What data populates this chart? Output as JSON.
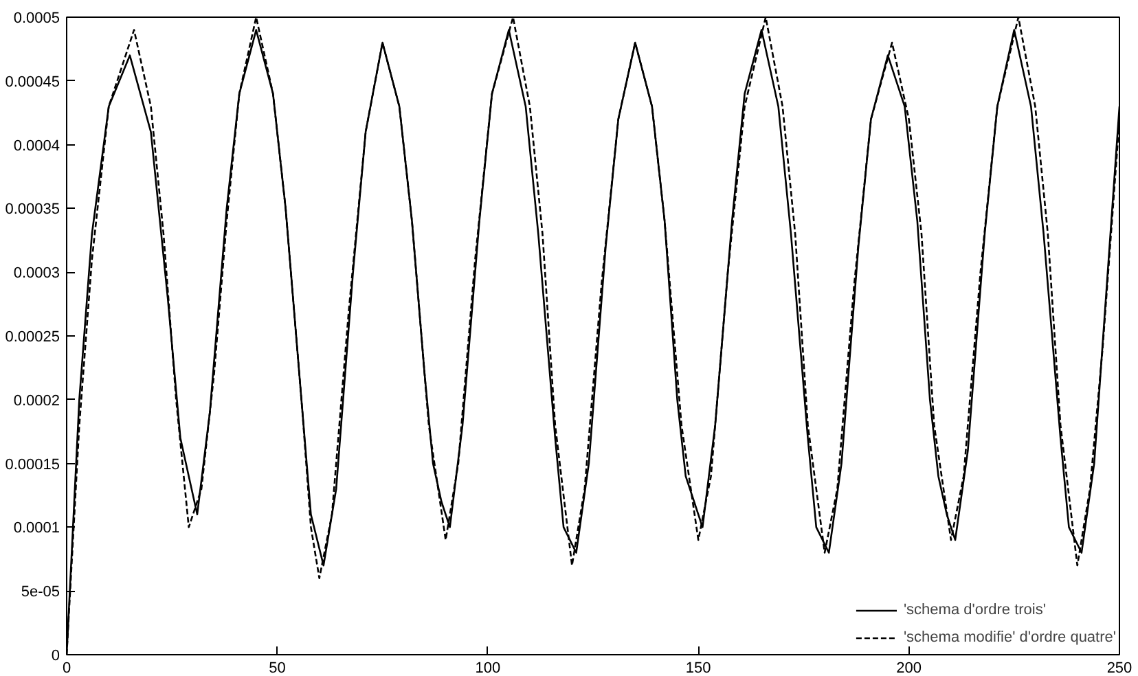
{
  "chart_data": {
    "type": "line",
    "xlim": [
      0,
      250
    ],
    "ylim": [
      0,
      0.0005
    ],
    "xticks": [
      0,
      50,
      100,
      150,
      200,
      250
    ],
    "yticks": [
      0,
      {
        "value": 5e-05,
        "label": "5e-05"
      },
      0.0001,
      0.00015,
      0.0002,
      0.00025,
      0.0003,
      0.00035,
      0.0004,
      0.00045,
      0.0005
    ],
    "grid": false,
    "legend": "bottom right",
    "marker": "none",
    "series": [
      {
        "name": "'schema d'ordre trois'",
        "color": "#000000",
        "line_style": "solid",
        "x": [
          0,
          3,
          6,
          10,
          15,
          20,
          24,
          27,
          29,
          31,
          34,
          38,
          41,
          45,
          49,
          52,
          56,
          58,
          61,
          64,
          68,
          71,
          75,
          79,
          82,
          85,
          87,
          89,
          91,
          94,
          98,
          101,
          105,
          109,
          112,
          116,
          118,
          121,
          124,
          128,
          131,
          135,
          139,
          142,
          145,
          147,
          149,
          151,
          154,
          158,
          161,
          165,
          169,
          172,
          176,
          178,
          181,
          184,
          188,
          191,
          195,
          199,
          202,
          205,
          207,
          209,
          211,
          214,
          218,
          221,
          225,
          229,
          232,
          236,
          238,
          241,
          244,
          247,
          250
        ],
        "values": [
          0,
          0.0002,
          0.00033,
          0.00043,
          0.00047,
          0.00041,
          0.00028,
          0.00017,
          0.00014,
          0.00011,
          0.00019,
          0.00035,
          0.00044,
          0.00049,
          0.00044,
          0.00035,
          0.00019,
          0.00011,
          7e-05,
          0.00013,
          0.0003,
          0.00041,
          0.00048,
          0.00043,
          0.00034,
          0.00022,
          0.00015,
          0.00012,
          0.0001,
          0.00018,
          0.00034,
          0.00044,
          0.00049,
          0.00043,
          0.00033,
          0.00017,
          0.0001,
          8e-05,
          0.00015,
          0.00032,
          0.00042,
          0.00048,
          0.00043,
          0.00034,
          0.0002,
          0.00014,
          0.00012,
          0.0001,
          0.00018,
          0.00034,
          0.00044,
          0.00049,
          0.00043,
          0.00033,
          0.00017,
          0.0001,
          8e-05,
          0.00015,
          0.00032,
          0.00042,
          0.00047,
          0.00043,
          0.00034,
          0.0002,
          0.00014,
          0.00011,
          9e-05,
          0.00016,
          0.00033,
          0.00043,
          0.00049,
          0.00043,
          0.00033,
          0.00017,
          0.0001,
          8e-05,
          0.00015,
          0.00029,
          0.00043
        ]
      },
      {
        "name": "'schema modifie' d'ordre quatre'",
        "color": "#000000",
        "line_style": "dashed",
        "x": [
          0,
          3,
          6,
          10,
          16,
          20,
          23,
          26,
          29,
          32,
          35,
          38,
          41,
          45,
          49,
          52,
          56,
          58,
          60,
          63,
          67,
          71,
          75,
          79,
          82,
          86,
          90,
          93,
          97,
          101,
          106,
          110,
          113,
          116,
          120,
          123,
          127,
          131,
          135,
          139,
          142,
          146,
          150,
          153,
          157,
          161,
          166,
          170,
          173,
          176,
          180,
          183,
          187,
          191,
          196,
          200,
          203,
          206,
          210,
          213,
          217,
          221,
          226,
          230,
          233,
          236,
          240,
          243,
          246,
          250
        ],
        "values": [
          0,
          0.00018,
          0.00031,
          0.00043,
          0.00049,
          0.00043,
          0.00033,
          0.0002,
          0.0001,
          0.00013,
          0.00022,
          0.00034,
          0.00044,
          0.0005,
          0.00044,
          0.00035,
          0.00019,
          0.0001,
          6e-05,
          0.00011,
          0.00027,
          0.00041,
          0.00048,
          0.00043,
          0.00034,
          0.00018,
          9e-05,
          0.00015,
          0.00031,
          0.00044,
          0.0005,
          0.00043,
          0.00033,
          0.00018,
          7e-05,
          0.00013,
          0.00029,
          0.00042,
          0.00048,
          0.00043,
          0.00034,
          0.00018,
          9e-05,
          0.00014,
          0.0003,
          0.00043,
          0.0005,
          0.00043,
          0.00033,
          0.00018,
          8e-05,
          0.00013,
          0.00029,
          0.00042,
          0.00048,
          0.00042,
          0.00033,
          0.00018,
          9e-05,
          0.00014,
          0.0003,
          0.00043,
          0.0005,
          0.00043,
          0.00033,
          0.00018,
          7e-05,
          0.00013,
          0.00024,
          0.00042
        ]
      }
    ]
  }
}
